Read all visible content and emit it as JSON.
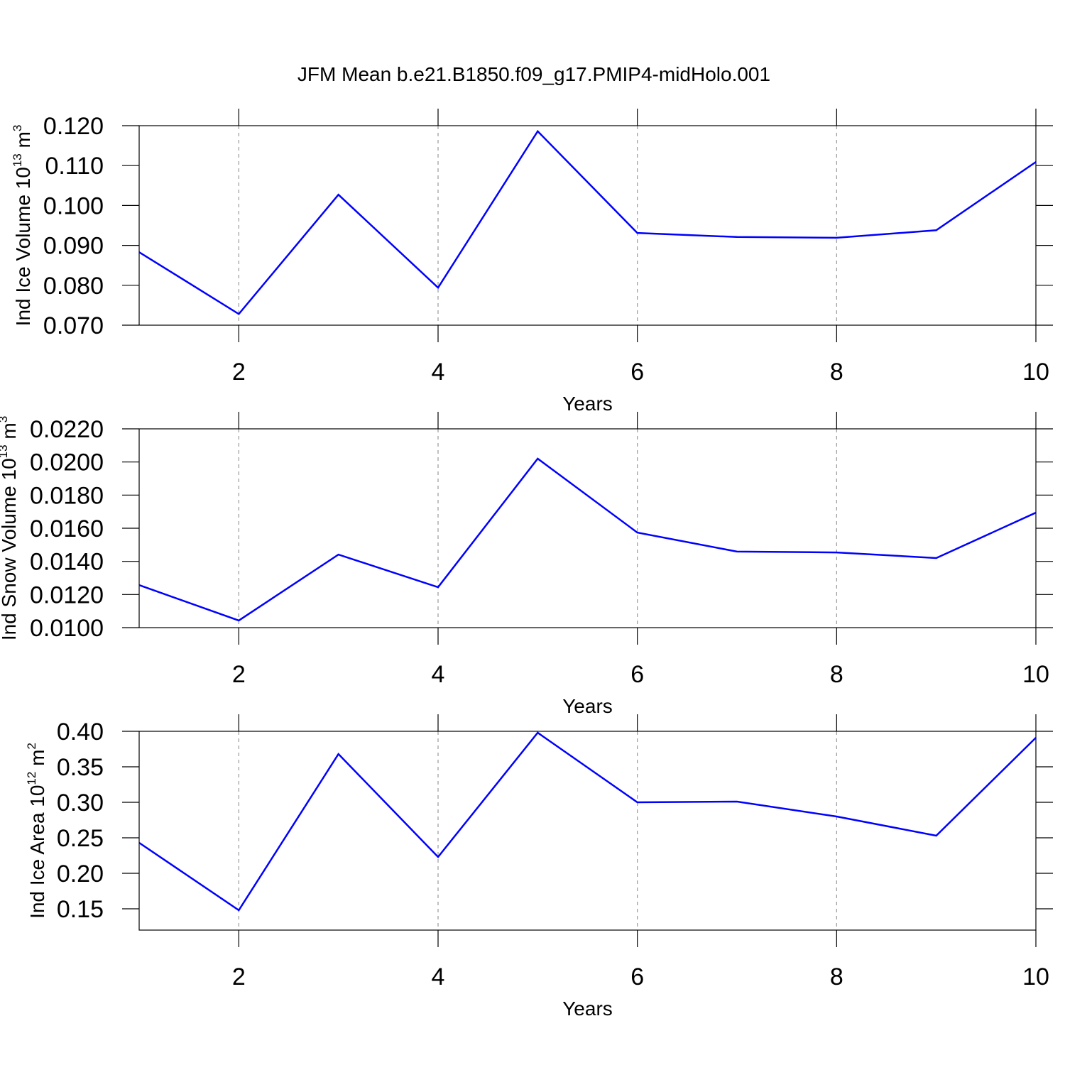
{
  "chart_data": [
    {
      "type": "line",
      "title": "JFM Mean b.e21.B1850.f09_g17.PMIP4-midHolo.001",
      "ylabel": [
        "Ind Ice Volume 10",
        "13",
        " m",
        "3"
      ],
      "xlabel": "Years",
      "x": [
        1,
        2,
        3,
        4,
        5,
        6,
        7,
        8,
        9,
        10
      ],
      "values": [
        0.0883,
        0.0728,
        0.1027,
        0.0794,
        0.1186,
        0.0931,
        0.0921,
        0.0919,
        0.0938,
        0.1109
      ],
      "color": "#0000ff",
      "xlim": [
        1,
        10
      ],
      "xticks": [
        2,
        4,
        6,
        8,
        10
      ],
      "xgrid": true,
      "ylim": [
        0.07,
        0.12
      ],
      "yticks": [
        {
          "value": 0.07,
          "label": "0.070"
        },
        {
          "value": 0.08,
          "label": "0.080"
        },
        {
          "value": 0.09,
          "label": "0.090"
        },
        {
          "value": 0.1,
          "label": "0.100"
        },
        {
          "value": 0.11,
          "label": "0.110"
        },
        {
          "value": 0.12,
          "label": "0.120"
        }
      ]
    },
    {
      "type": "line",
      "ylabel": [
        "Ind Snow Volume 10",
        "13",
        " m",
        "3"
      ],
      "xlabel": "Years",
      "x": [
        1,
        2,
        3,
        4,
        5,
        6,
        7,
        8,
        9,
        10
      ],
      "values": [
        0.01257,
        0.01043,
        0.01441,
        0.01244,
        0.0202,
        0.01574,
        0.01459,
        0.01454,
        0.0142,
        0.01694
      ],
      "color": "#0000ff",
      "xlim": [
        1,
        10
      ],
      "xticks": [
        2,
        4,
        6,
        8,
        10
      ],
      "xgrid": true,
      "ylim": [
        0.01,
        0.022
      ],
      "yticks": [
        {
          "value": 0.01,
          "label": "0.0100"
        },
        {
          "value": 0.012,
          "label": "0.0120"
        },
        {
          "value": 0.014,
          "label": "0.0140"
        },
        {
          "value": 0.016,
          "label": "0.0160"
        },
        {
          "value": 0.018,
          "label": "0.0180"
        },
        {
          "value": 0.02,
          "label": "0.0200"
        },
        {
          "value": 0.022,
          "label": "0.0220"
        }
      ]
    },
    {
      "type": "line",
      "ylabel": [
        "Ind Ice Area 10",
        "12",
        " m",
        "2"
      ],
      "xlabel": "Years",
      "x": [
        1,
        2,
        3,
        4,
        5,
        6,
        7,
        8,
        9,
        10
      ],
      "values": [
        0.243,
        0.148,
        0.368,
        0.223,
        0.398,
        0.3,
        0.301,
        0.28,
        0.253,
        0.391
      ],
      "color": "#0000ff",
      "xlim": [
        1,
        10
      ],
      "xticks": [
        2,
        4,
        6,
        8,
        10
      ],
      "xgrid": true,
      "ylim": [
        0.12,
        0.4
      ],
      "yticks": [
        {
          "value": 0.15,
          "label": "0.15"
        },
        {
          "value": 0.2,
          "label": "0.20"
        },
        {
          "value": 0.25,
          "label": "0.25"
        },
        {
          "value": 0.3,
          "label": "0.30"
        },
        {
          "value": 0.35,
          "label": "0.35"
        },
        {
          "value": 0.4,
          "label": "0.40"
        }
      ]
    }
  ]
}
